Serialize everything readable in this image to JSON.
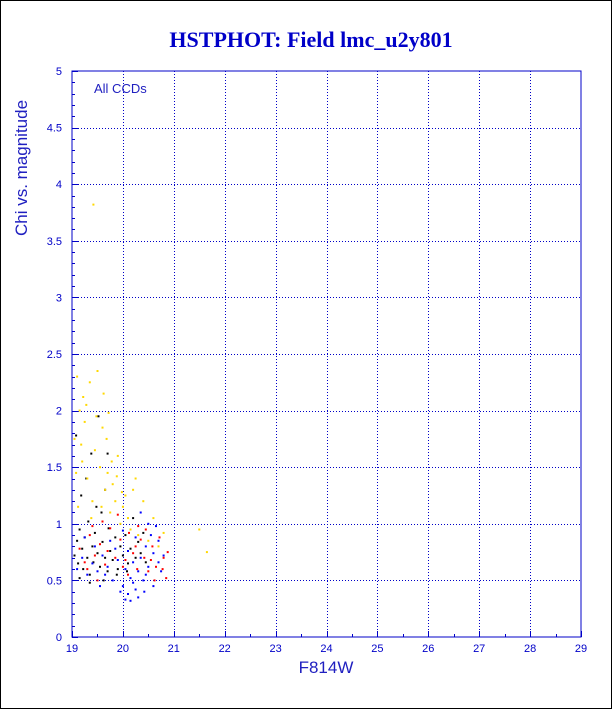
{
  "chart_data": {
    "type": "scatter",
    "title": "HSTPHOT: Field lmc_u2y801",
    "xlabel": "F814W",
    "ylabel": "Chi vs. magnitude",
    "annotation": "All CCDs",
    "xlim": [
      19,
      29
    ],
    "ylim": [
      0,
      5
    ],
    "x_ticks": [
      "19",
      "20",
      "21",
      "22",
      "23",
      "24",
      "25",
      "26",
      "27",
      "28",
      "29"
    ],
    "y_ticks": [
      "0",
      "0.5",
      "1",
      "1.5",
      "2",
      "2.5",
      "3",
      "3.5",
      "4",
      "4.5",
      "5"
    ],
    "grid": true,
    "colors": {
      "frame": "#0000c8",
      "text": "#2020c0",
      "series": [
        "#000000",
        "#0000ff",
        "#ff0000",
        "#ffd800"
      ]
    },
    "series": [
      {
        "color": "#000000",
        "points": [
          [
            19.05,
            0.72
          ],
          [
            19.1,
            0.85
          ],
          [
            19.12,
            0.65
          ],
          [
            19.15,
            0.95
          ],
          [
            19.2,
            0.78
          ],
          [
            19.22,
            0.6
          ],
          [
            19.25,
            0.88
          ],
          [
            19.3,
            0.7
          ],
          [
            19.32,
            1.02
          ],
          [
            19.35,
            0.55
          ],
          [
            19.4,
            0.8
          ],
          [
            19.42,
            0.66
          ],
          [
            19.45,
            0.92
          ],
          [
            19.5,
            0.74
          ],
          [
            19.55,
            0.62
          ],
          [
            19.58,
            1.1
          ],
          [
            19.6,
            0.84
          ],
          [
            19.65,
            0.7
          ],
          [
            19.7,
            0.58
          ],
          [
            19.72,
            0.96
          ],
          [
            19.75,
            0.76
          ],
          [
            19.8,
            0.68
          ],
          [
            19.85,
            0.88
          ],
          [
            19.9,
            0.6
          ],
          [
            19.95,
            0.8
          ],
          [
            20.0,
            0.72
          ],
          [
            20.05,
            0.9
          ],
          [
            20.1,
            0.65
          ],
          [
            20.15,
            0.78
          ],
          [
            20.2,
            1.05
          ],
          [
            20.25,
            0.7
          ],
          [
            20.3,
            0.84
          ],
          [
            19.18,
            1.25
          ],
          [
            19.28,
            1.4
          ],
          [
            19.48,
            1.15
          ],
          [
            19.65,
            1.3
          ],
          [
            19.38,
            1.62
          ],
          [
            19.08,
            1.78
          ],
          [
            19.52,
            1.95
          ],
          [
            19.7,
            1.62
          ],
          [
            20.35,
            0.74
          ],
          [
            20.4,
            0.92
          ],
          [
            20.45,
            0.66
          ],
          [
            19.15,
            0.52
          ],
          [
            19.62,
            0.5
          ],
          [
            19.88,
            0.55
          ],
          [
            20.08,
            0.58
          ],
          [
            19.35,
            0.48
          ]
        ]
      },
      {
        "color": "#0000ff",
        "points": [
          [
            19.1,
            0.6
          ],
          [
            19.2,
            0.7
          ],
          [
            19.3,
            0.55
          ],
          [
            19.4,
            0.65
          ],
          [
            19.5,
            0.58
          ],
          [
            19.6,
            0.72
          ],
          [
            19.7,
            0.62
          ],
          [
            19.8,
            0.5
          ],
          [
            19.9,
            0.68
          ],
          [
            20.0,
            0.45
          ],
          [
            20.05,
            0.6
          ],
          [
            20.1,
            0.38
          ],
          [
            20.15,
            0.52
          ],
          [
            20.2,
            0.66
          ],
          [
            20.25,
            0.42
          ],
          [
            20.3,
            0.58
          ],
          [
            20.35,
            0.7
          ],
          [
            20.4,
            0.5
          ],
          [
            20.45,
            0.8
          ],
          [
            20.5,
            0.62
          ],
          [
            20.55,
            0.9
          ],
          [
            20.6,
            0.74
          ],
          [
            20.65,
            0.98
          ],
          [
            20.7,
            0.66
          ],
          [
            20.75,
            0.58
          ],
          [
            20.8,
            0.72
          ],
          [
            20.3,
            0.35
          ],
          [
            20.05,
            0.33
          ],
          [
            19.95,
            0.4
          ],
          [
            20.25,
            0.88
          ],
          [
            20.5,
            1.0
          ],
          [
            20.35,
            1.1
          ],
          [
            19.25,
            0.88
          ],
          [
            19.45,
            0.8
          ],
          [
            19.75,
            0.85
          ],
          [
            20.0,
            0.94
          ],
          [
            20.2,
            0.48
          ],
          [
            20.45,
            0.55
          ],
          [
            20.6,
            0.45
          ],
          [
            19.55,
            0.45
          ],
          [
            20.15,
            0.32
          ],
          [
            20.42,
            0.4
          ],
          [
            19.85,
            0.78
          ],
          [
            20.7,
            0.85
          ],
          [
            20.1,
            0.76
          ],
          [
            19.65,
            0.55
          ]
        ]
      },
      {
        "color": "#ff0000",
        "points": [
          [
            19.15,
            0.78
          ],
          [
            19.25,
            0.66
          ],
          [
            19.35,
            0.9
          ],
          [
            19.45,
            0.72
          ],
          [
            19.55,
            0.82
          ],
          [
            19.65,
            0.64
          ],
          [
            19.75,
            0.96
          ],
          [
            19.85,
            0.7
          ],
          [
            19.95,
            0.86
          ],
          [
            20.05,
            0.68
          ],
          [
            20.12,
            0.92
          ],
          [
            20.2,
            0.74
          ],
          [
            20.28,
            0.6
          ],
          [
            20.35,
            0.86
          ],
          [
            20.42,
            0.7
          ],
          [
            20.5,
            0.58
          ],
          [
            20.58,
            0.8
          ],
          [
            20.65,
            0.62
          ],
          [
            20.72,
            0.88
          ],
          [
            20.8,
            0.7
          ],
          [
            20.85,
            0.52
          ],
          [
            20.88,
            0.75
          ],
          [
            19.6,
            1.02
          ],
          [
            19.9,
            1.08
          ],
          [
            20.1,
            0.55
          ],
          [
            20.3,
            0.98
          ],
          [
            20.55,
            0.68
          ],
          [
            19.3,
            0.6
          ],
          [
            19.5,
            0.5
          ],
          [
            19.7,
            0.76
          ],
          [
            20.0,
            0.62
          ],
          [
            20.25,
            0.8
          ],
          [
            20.45,
            0.95
          ],
          [
            20.62,
            0.5
          ],
          [
            20.78,
            0.6
          ],
          [
            19.4,
            0.98
          ]
        ]
      },
      {
        "color": "#ffd800",
        "points": [
          [
            19.05,
            1.75
          ],
          [
            19.1,
            2.3
          ],
          [
            19.15,
            2.0
          ],
          [
            19.2,
            1.55
          ],
          [
            19.25,
            1.9
          ],
          [
            19.3,
            1.4
          ],
          [
            19.35,
            2.25
          ],
          [
            19.4,
            1.2
          ],
          [
            19.45,
            1.65
          ],
          [
            19.5,
            2.35
          ],
          [
            19.55,
            1.5
          ],
          [
            19.6,
            1.85
          ],
          [
            19.65,
            1.3
          ],
          [
            19.7,
            1.45
          ],
          [
            19.75,
            1.1
          ],
          [
            19.8,
            1.35
          ],
          [
            19.85,
            1.2
          ],
          [
            19.9,
            1.6
          ],
          [
            19.95,
            1.0
          ],
          [
            20.0,
            1.15
          ],
          [
            20.05,
            1.25
          ],
          [
            20.1,
            1.05
          ],
          [
            20.15,
            0.95
          ],
          [
            20.2,
            1.3
          ],
          [
            20.25,
            1.4
          ],
          [
            20.3,
            0.9
          ],
          [
            19.08,
            1.45
          ],
          [
            19.18,
            1.7
          ],
          [
            19.28,
            2.05
          ],
          [
            19.38,
            1.05
          ],
          [
            19.48,
            1.95
          ],
          [
            19.58,
            1.15
          ],
          [
            19.68,
            1.75
          ],
          [
            19.78,
            1.55
          ],
          [
            19.88,
            1.42
          ],
          [
            19.98,
            1.28
          ],
          [
            20.4,
            1.2
          ],
          [
            20.5,
            0.85
          ],
          [
            20.6,
            1.05
          ],
          [
            20.7,
            0.8
          ],
          [
            20.8,
            0.92
          ],
          [
            21.5,
            0.95
          ],
          [
            21.65,
            0.75
          ],
          [
            19.42,
            3.82
          ],
          [
            19.12,
            1.15
          ],
          [
            19.62,
            2.15
          ],
          [
            19.22,
            2.12
          ],
          [
            19.72,
            1.98
          ]
        ]
      }
    ]
  }
}
